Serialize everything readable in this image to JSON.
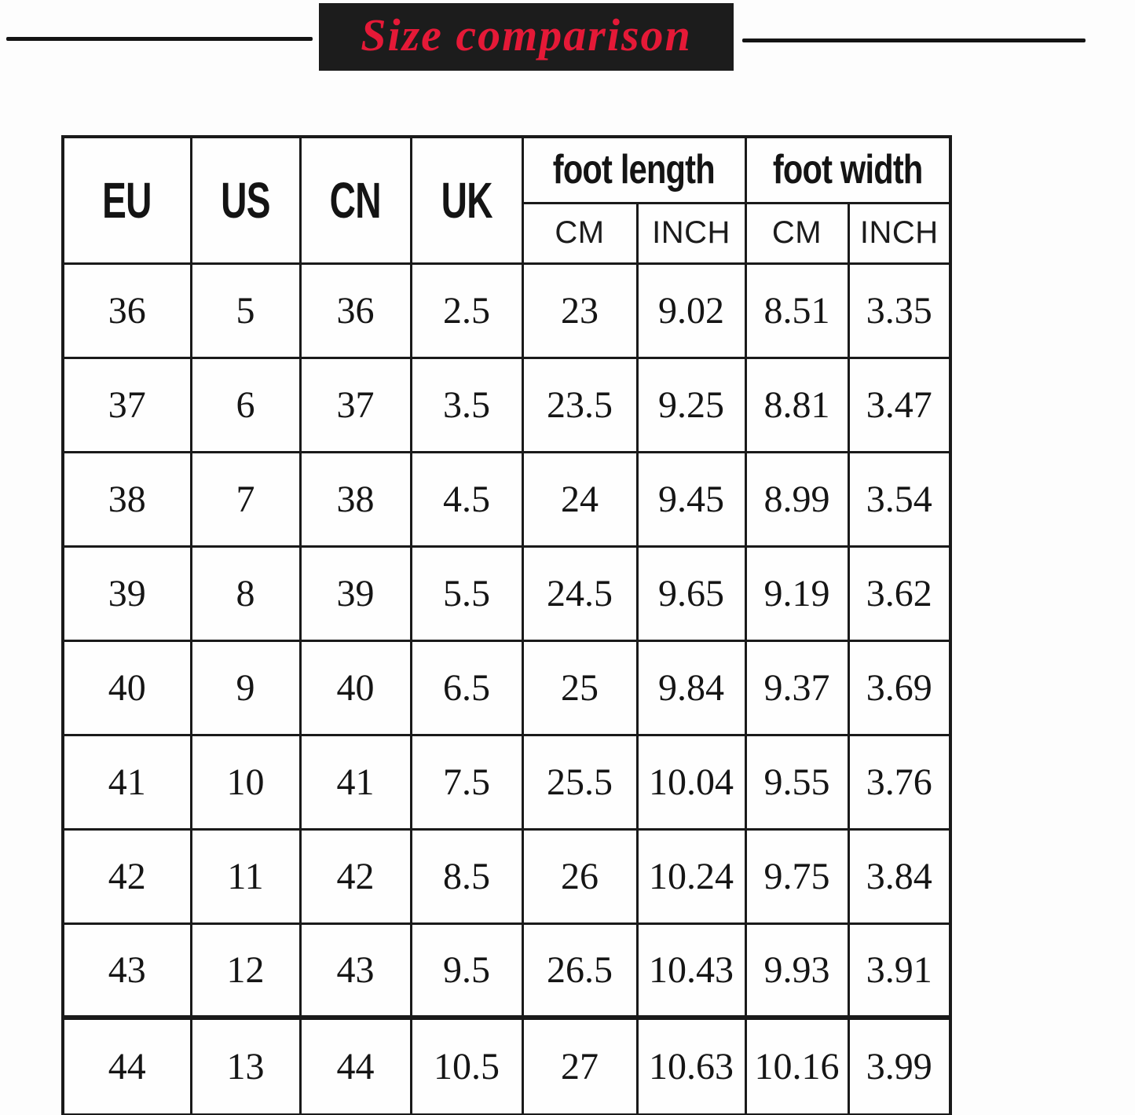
{
  "title": {
    "text": "Size comparison"
  },
  "colors": {
    "title_red": "#e51937",
    "banner_black": "#1c1c1c",
    "table_border_black": "#1a1a1a"
  },
  "chart_data": {
    "type": "table",
    "title": "Size comparison",
    "header": {
      "columns": [
        "EU",
        "US",
        "CN",
        "UK"
      ],
      "groups": [
        {
          "label": "foot length",
          "subcolumns": [
            "CM",
            "INCH"
          ]
        },
        {
          "label": "foot width",
          "subcolumns": [
            "CM",
            "INCH"
          ]
        }
      ],
      "flat_columns": [
        "EU",
        "US",
        "CN",
        "UK",
        "foot length CM",
        "foot length INCH",
        "foot width CM",
        "foot width INCH"
      ]
    },
    "rows": [
      [
        "36",
        "5",
        "36",
        "2.5",
        "23",
        "9.02",
        "8.51",
        "3.35"
      ],
      [
        "37",
        "6",
        "37",
        "3.5",
        "23.5",
        "9.25",
        "8.81",
        "3.47"
      ],
      [
        "38",
        "7",
        "38",
        "4.5",
        "24",
        "9.45",
        "8.99",
        "3.54"
      ],
      [
        "39",
        "8",
        "39",
        "5.5",
        "24.5",
        "9.65",
        "9.19",
        "3.62"
      ],
      [
        "40",
        "9",
        "40",
        "6.5",
        "25",
        "9.84",
        "9.37",
        "3.69"
      ],
      [
        "41",
        "10",
        "41",
        "7.5",
        "25.5",
        "10.04",
        "9.55",
        "3.76"
      ],
      [
        "42",
        "11",
        "42",
        "8.5",
        "26",
        "10.24",
        "9.75",
        "3.84"
      ],
      [
        "43",
        "12",
        "43",
        "9.5",
        "26.5",
        "10.43",
        "9.93",
        "3.91"
      ],
      [
        "44",
        "13",
        "44",
        "10.5",
        "27",
        "10.63",
        "10.16",
        "3.99"
      ]
    ]
  }
}
